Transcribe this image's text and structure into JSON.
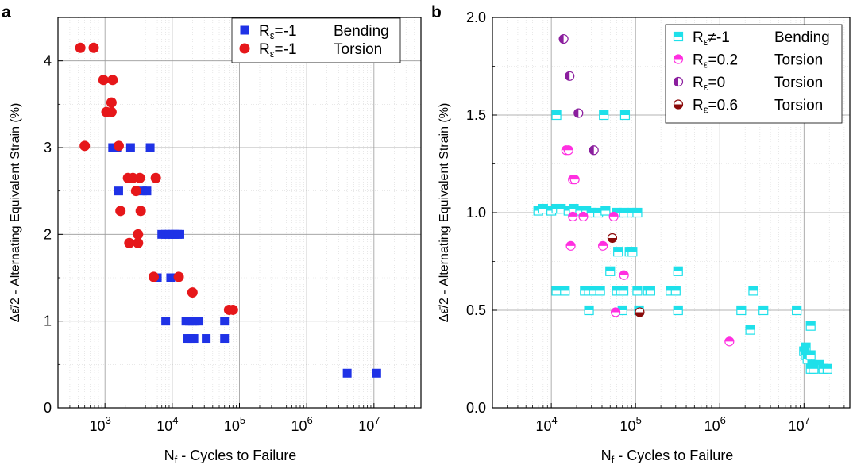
{
  "panels": [
    {
      "label": "a"
    },
    {
      "label": "b"
    }
  ],
  "chart_data": [
    {
      "type": "scatter",
      "panel": "a",
      "xlabel_main": "N",
      "xlabel_sub": "f",
      "xlabel_rest": " - Cycles to Failure",
      "ylabel": "Δε̄/2 - Alternating Equivalent Strain (%)",
      "xscale": "log",
      "xlim": [
        200,
        50000000
      ],
      "ylim": [
        0,
        4.5
      ],
      "xticks": [
        {
          "value": 1000,
          "base": "10",
          "exp": "3"
        },
        {
          "value": 10000,
          "base": "10",
          "exp": "4"
        },
        {
          "value": 100000,
          "base": "10",
          "exp": "5"
        },
        {
          "value": 1000000,
          "base": "10",
          "exp": "6"
        },
        {
          "value": 10000000,
          "base": "10",
          "exp": "7"
        }
      ],
      "yticks": [
        {
          "value": 0,
          "label": "0"
        },
        {
          "value": 1,
          "label": "1"
        },
        {
          "value": 2,
          "label": "2"
        },
        {
          "value": 3,
          "label": "3"
        },
        {
          "value": 4,
          "label": "4"
        }
      ],
      "grid": true,
      "legend_position": "top-right",
      "series": [
        {
          "legend_main": "R",
          "legend_sub": "ε",
          "legend_rest": "=-1",
          "legend_type": "Bending",
          "marker": "square",
          "color": "#1f32e6",
          "points": [
            [
              1300,
              3.0
            ],
            [
              1500,
              3.0
            ],
            [
              2400,
              3.0
            ],
            [
              4700,
              3.0
            ],
            [
              1600,
              2.5
            ],
            [
              3600,
              2.5
            ],
            [
              4200,
              2.5
            ],
            [
              7000,
              2.0
            ],
            [
              8000,
              2.0
            ],
            [
              9000,
              2.0
            ],
            [
              10000,
              2.0
            ],
            [
              11000,
              2.0
            ],
            [
              12000,
              2.0
            ],
            [
              13000,
              2.0
            ],
            [
              6000,
              1.5
            ],
            [
              9500,
              1.5
            ],
            [
              8000,
              1.0
            ],
            [
              16000,
              1.0
            ],
            [
              18000,
              1.0
            ],
            [
              20000,
              1.0
            ],
            [
              22000,
              1.0
            ],
            [
              25000,
              1.0
            ],
            [
              60000,
              1.0
            ],
            [
              17000,
              0.8
            ],
            [
              19000,
              0.8
            ],
            [
              21000,
              0.8
            ],
            [
              32000,
              0.8
            ],
            [
              60000,
              0.8
            ],
            [
              4000000,
              0.4
            ],
            [
              11000000,
              0.4
            ]
          ]
        },
        {
          "legend_main": "R",
          "legend_sub": "ε",
          "legend_rest": "=-1",
          "legend_type": "Torsion",
          "marker": "circle",
          "color": "#e6171a",
          "points": [
            [
              430,
              4.15
            ],
            [
              680,
              4.15
            ],
            [
              950,
              3.78
            ],
            [
              1300,
              3.78
            ],
            [
              1250,
              3.52
            ],
            [
              1050,
              3.41
            ],
            [
              1250,
              3.41
            ],
            [
              500,
              3.02
            ],
            [
              1600,
              3.02
            ],
            [
              2200,
              2.65
            ],
            [
              2600,
              2.65
            ],
            [
              3300,
              2.65
            ],
            [
              5700,
              2.65
            ],
            [
              2900,
              2.5
            ],
            [
              1700,
              2.27
            ],
            [
              3400,
              2.27
            ],
            [
              3100,
              2.0
            ],
            [
              2300,
              1.9
            ],
            [
              3100,
              1.9
            ],
            [
              5300,
              1.51
            ],
            [
              12500,
              1.51
            ],
            [
              20000,
              1.33
            ],
            [
              70000,
              1.13
            ],
            [
              80000,
              1.13
            ]
          ]
        }
      ]
    },
    {
      "type": "scatter",
      "panel": "b",
      "xlabel_main": "N",
      "xlabel_sub": "f",
      "xlabel_rest": " - Cycles to Failure",
      "ylabel": "Δε̄/2 - Alternating Equivalent Strain (%)",
      "xscale": "log",
      "xlim": [
        2000,
        35000000
      ],
      "ylim": [
        0,
        2.0
      ],
      "xticks": [
        {
          "value": 10000,
          "base": "10",
          "exp": "4"
        },
        {
          "value": 100000,
          "base": "10",
          "exp": "5"
        },
        {
          "value": 1000000,
          "base": "10",
          "exp": "6"
        },
        {
          "value": 10000000,
          "base": "10",
          "exp": "7"
        }
      ],
      "yticks": [
        {
          "value": 0,
          "label": "0.0"
        },
        {
          "value": 0.5,
          "label": "0.5"
        },
        {
          "value": 1.0,
          "label": "1.0"
        },
        {
          "value": 1.5,
          "label": "1.5"
        },
        {
          "value": 2.0,
          "label": "2.0"
        }
      ],
      "grid": true,
      "legend_position": "top-right",
      "series": [
        {
          "legend_main": "R",
          "legend_sub": "ε",
          "legend_rest": "≠-1",
          "legend_type": "Bending",
          "marker": "half-square",
          "color": "#1ee0ea",
          "points": [
            [
              11500,
              1.5
            ],
            [
              42000,
              1.5
            ],
            [
              75000,
              1.5
            ],
            [
              7000,
              1.01
            ],
            [
              8000,
              1.02
            ],
            [
              10000,
              1.01
            ],
            [
              11500,
              1.02
            ],
            [
              13000,
              1.02
            ],
            [
              16000,
              1.01
            ],
            [
              18500,
              1.02
            ],
            [
              22000,
              1.01
            ],
            [
              26000,
              1.01
            ],
            [
              30000,
              1.0
            ],
            [
              36000,
              1.0
            ],
            [
              44000,
              1.01
            ],
            [
              60000,
              1.0
            ],
            [
              73000,
              1.0
            ],
            [
              90000,
              1.0
            ],
            [
              105000,
              1.0
            ],
            [
              62000,
              0.8
            ],
            [
              85000,
              0.8
            ],
            [
              92000,
              0.8
            ],
            [
              50000,
              0.7
            ],
            [
              320000,
              0.7
            ],
            [
              11500,
              0.6
            ],
            [
              14500,
              0.6
            ],
            [
              25000,
              0.6
            ],
            [
              28000,
              0.6
            ],
            [
              32000,
              0.6
            ],
            [
              38000,
              0.6
            ],
            [
              60000,
              0.6
            ],
            [
              67000,
              0.6
            ],
            [
              72000,
              0.6
            ],
            [
              105000,
              0.6
            ],
            [
              140000,
              0.6
            ],
            [
              150000,
              0.6
            ],
            [
              260000,
              0.6
            ],
            [
              300000,
              0.6
            ],
            [
              2500000,
              0.6
            ],
            [
              28000,
              0.5
            ],
            [
              70000,
              0.5
            ],
            [
              110000,
              0.5
            ],
            [
              320000,
              0.5
            ],
            [
              1800000,
              0.5
            ],
            [
              3300000,
              0.5
            ],
            [
              8200000,
              0.5
            ],
            [
              2300000,
              0.4
            ],
            [
              12000000,
              0.42
            ],
            [
              10500000,
              0.31
            ],
            [
              10000000,
              0.29
            ],
            [
              10500000,
              0.27
            ],
            [
              11000000,
              0.25
            ],
            [
              12000000,
              0.27
            ],
            [
              12500000,
              0.22
            ],
            [
              15000000,
              0.22
            ],
            [
              17000000,
              0.2
            ],
            [
              19000000,
              0.2
            ],
            [
              12000000,
              0.2
            ],
            [
              13000000,
              0.2
            ]
          ]
        },
        {
          "legend_main": "R",
          "legend_sub": "ε",
          "legend_rest": "=0.2",
          "legend_type": "Torsion",
          "marker": "half-circle",
          "color": "#ff2fe0",
          "points": [
            [
              15000,
              1.32
            ],
            [
              16000,
              1.32
            ],
            [
              18000,
              1.17
            ],
            [
              19000,
              1.17
            ],
            [
              18000,
              0.98
            ],
            [
              24000,
              0.98
            ],
            [
              55000,
              0.98
            ],
            [
              17000,
              0.83
            ],
            [
              41000,
              0.83
            ],
            [
              73000,
              0.68
            ],
            [
              58000,
              0.49
            ],
            [
              1300000,
              0.34
            ]
          ]
        },
        {
          "legend_main": "R",
          "legend_sub": "ε",
          "legend_rest": "=0",
          "legend_type": "Torsion",
          "marker": "half-circle-left",
          "color": "#8b1e9e",
          "points": [
            [
              14000,
              1.89
            ],
            [
              16500,
              1.7
            ],
            [
              21000,
              1.51
            ],
            [
              32000,
              1.32
            ]
          ]
        },
        {
          "legend_main": "R",
          "legend_sub": "ε",
          "legend_rest": "=0.6",
          "legend_type": "Torsion",
          "marker": "half-circle-bottom",
          "color": "#8b0a0a",
          "points": [
            [
              53000,
              0.87
            ],
            [
              112000,
              0.49
            ]
          ]
        }
      ]
    }
  ]
}
